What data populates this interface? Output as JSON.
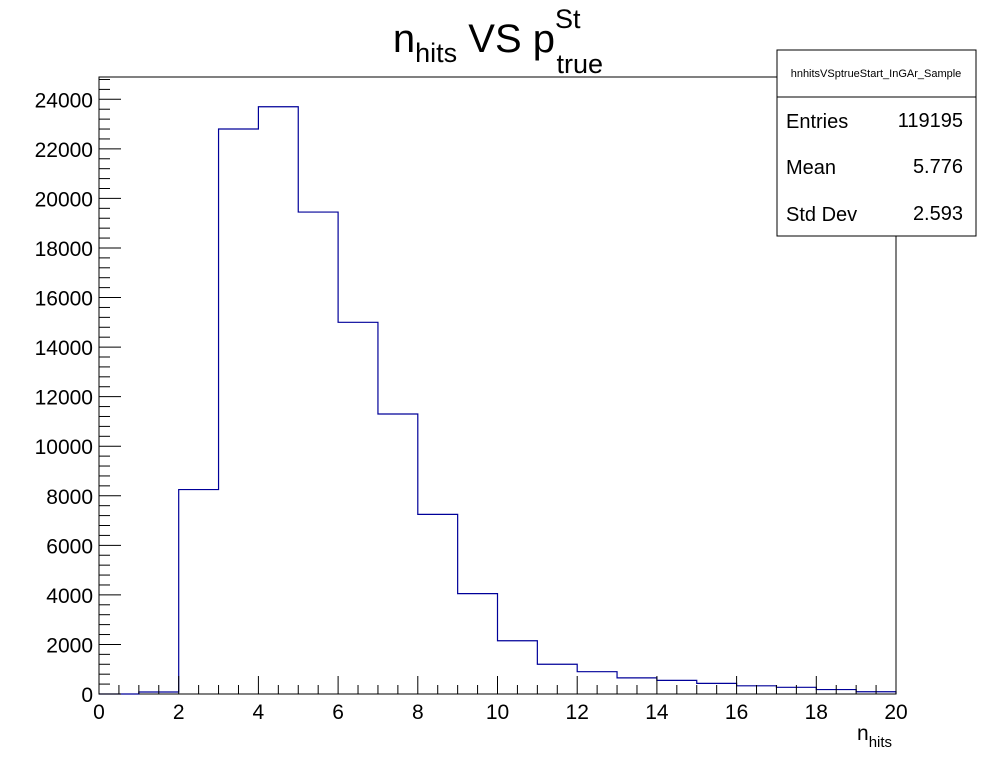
{
  "chart_data": {
    "type": "bar",
    "title": {
      "base": "n",
      "base_sub": "hits",
      "middle": " VS p",
      "sup": "St",
      "sub": "true"
    },
    "xlabel": {
      "base": "n",
      "sub": "hits"
    },
    "ylabel": "",
    "bin_edges": [
      0,
      1,
      2,
      3,
      4,
      5,
      6,
      7,
      8,
      9,
      10,
      11,
      12,
      13,
      14,
      15,
      16,
      17,
      18,
      19,
      20
    ],
    "values": [
      0,
      80,
      8250,
      22800,
      23700,
      19450,
      15000,
      11300,
      7250,
      4050,
      2150,
      1200,
      900,
      650,
      550,
      430,
      330,
      270,
      180,
      90
    ],
    "xlim": [
      0,
      20
    ],
    "ylim": [
      0,
      24900
    ],
    "x_ticks": [
      "0",
      "2",
      "4",
      "6",
      "8",
      "10",
      "12",
      "14",
      "16",
      "18",
      "20"
    ],
    "y_ticks": [
      "0",
      "2000",
      "4000",
      "6000",
      "8000",
      "10000",
      "12000",
      "14000",
      "16000",
      "18000",
      "20000",
      "22000",
      "24000"
    ],
    "line_color": "#000099",
    "grid": false,
    "legend": "none"
  },
  "stats_box": {
    "name": "hnhitsVSptrueStart_InGAr_Sample",
    "rows": [
      {
        "label": "Entries",
        "value": "119195"
      },
      {
        "label": "Mean",
        "value": "5.776"
      },
      {
        "label": "Std Dev",
        "value": "2.593"
      }
    ]
  }
}
